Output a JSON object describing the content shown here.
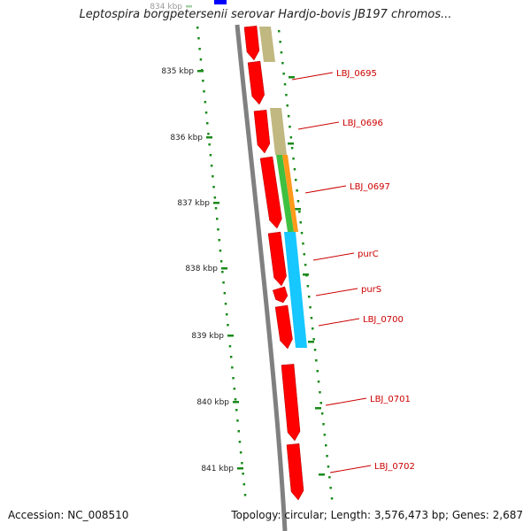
{
  "title": "Leptospira borgpetersenii serovar Hardjo-bovis JB197 chromos...",
  "accession": "Accession: NC_008510",
  "topology": "Topology: circular; Length: 3,576,473 bp; Genes: 2,687",
  "ticks": [
    {
      "label": "834 kbp",
      "faded": true
    },
    {
      "label": "835 kbp"
    },
    {
      "label": "836 kbp"
    },
    {
      "label": "837 kbp"
    },
    {
      "label": "838 kbp"
    },
    {
      "label": "839 kbp"
    },
    {
      "label": "840 kbp"
    },
    {
      "label": "841 kbp"
    }
  ],
  "gene_labels": [
    "LBJ_0695",
    "LBJ_0696",
    "LBJ_0697",
    "purC",
    "purS",
    "LBJ_0700",
    "LBJ_0701",
    "LBJ_0702"
  ],
  "colors": {
    "cds": "#ff0000",
    "cog_khaki": "#c0b880",
    "cog_green": "#40c040",
    "cog_orange": "#ff9a1a",
    "cog_cyan": "#17c7ff",
    "backbone": "#808080",
    "ticks": "#1a8a1a",
    "label": "#cc0000",
    "blue_block": "#0000ff"
  }
}
